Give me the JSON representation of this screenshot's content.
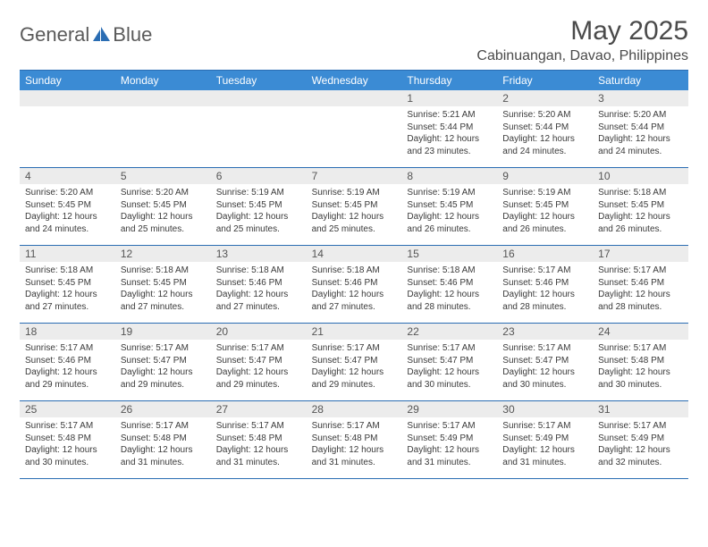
{
  "logo": {
    "word1": "General",
    "word2": "Blue"
  },
  "title": "May 2025",
  "location": "Cabinuangan, Davao, Philippines",
  "colors": {
    "header_bg": "#3b8bd4",
    "rule": "#2a6db3",
    "daynum_bg": "#ececec",
    "text": "#3a3a3a"
  },
  "font": {
    "family": "Arial",
    "title_size": 30,
    "location_size": 16,
    "dow_size": 12,
    "daynum_size": 12,
    "info_size": 10
  },
  "dow": [
    "Sunday",
    "Monday",
    "Tuesday",
    "Wednesday",
    "Thursday",
    "Friday",
    "Saturday"
  ],
  "days": [
    {
      "n": "",
      "sr": "",
      "ss": "",
      "dl1": "",
      "dl2": ""
    },
    {
      "n": "",
      "sr": "",
      "ss": "",
      "dl1": "",
      "dl2": ""
    },
    {
      "n": "",
      "sr": "",
      "ss": "",
      "dl1": "",
      "dl2": ""
    },
    {
      "n": "",
      "sr": "",
      "ss": "",
      "dl1": "",
      "dl2": ""
    },
    {
      "n": "1",
      "sr": "Sunrise: 5:21 AM",
      "ss": "Sunset: 5:44 PM",
      "dl1": "Daylight: 12 hours",
      "dl2": "and 23 minutes."
    },
    {
      "n": "2",
      "sr": "Sunrise: 5:20 AM",
      "ss": "Sunset: 5:44 PM",
      "dl1": "Daylight: 12 hours",
      "dl2": "and 24 minutes."
    },
    {
      "n": "3",
      "sr": "Sunrise: 5:20 AM",
      "ss": "Sunset: 5:44 PM",
      "dl1": "Daylight: 12 hours",
      "dl2": "and 24 minutes."
    },
    {
      "n": "4",
      "sr": "Sunrise: 5:20 AM",
      "ss": "Sunset: 5:45 PM",
      "dl1": "Daylight: 12 hours",
      "dl2": "and 24 minutes."
    },
    {
      "n": "5",
      "sr": "Sunrise: 5:20 AM",
      "ss": "Sunset: 5:45 PM",
      "dl1": "Daylight: 12 hours",
      "dl2": "and 25 minutes."
    },
    {
      "n": "6",
      "sr": "Sunrise: 5:19 AM",
      "ss": "Sunset: 5:45 PM",
      "dl1": "Daylight: 12 hours",
      "dl2": "and 25 minutes."
    },
    {
      "n": "7",
      "sr": "Sunrise: 5:19 AM",
      "ss": "Sunset: 5:45 PM",
      "dl1": "Daylight: 12 hours",
      "dl2": "and 25 minutes."
    },
    {
      "n": "8",
      "sr": "Sunrise: 5:19 AM",
      "ss": "Sunset: 5:45 PM",
      "dl1": "Daylight: 12 hours",
      "dl2": "and 26 minutes."
    },
    {
      "n": "9",
      "sr": "Sunrise: 5:19 AM",
      "ss": "Sunset: 5:45 PM",
      "dl1": "Daylight: 12 hours",
      "dl2": "and 26 minutes."
    },
    {
      "n": "10",
      "sr": "Sunrise: 5:18 AM",
      "ss": "Sunset: 5:45 PM",
      "dl1": "Daylight: 12 hours",
      "dl2": "and 26 minutes."
    },
    {
      "n": "11",
      "sr": "Sunrise: 5:18 AM",
      "ss": "Sunset: 5:45 PM",
      "dl1": "Daylight: 12 hours",
      "dl2": "and 27 minutes."
    },
    {
      "n": "12",
      "sr": "Sunrise: 5:18 AM",
      "ss": "Sunset: 5:45 PM",
      "dl1": "Daylight: 12 hours",
      "dl2": "and 27 minutes."
    },
    {
      "n": "13",
      "sr": "Sunrise: 5:18 AM",
      "ss": "Sunset: 5:46 PM",
      "dl1": "Daylight: 12 hours",
      "dl2": "and 27 minutes."
    },
    {
      "n": "14",
      "sr": "Sunrise: 5:18 AM",
      "ss": "Sunset: 5:46 PM",
      "dl1": "Daylight: 12 hours",
      "dl2": "and 27 minutes."
    },
    {
      "n": "15",
      "sr": "Sunrise: 5:18 AM",
      "ss": "Sunset: 5:46 PM",
      "dl1": "Daylight: 12 hours",
      "dl2": "and 28 minutes."
    },
    {
      "n": "16",
      "sr": "Sunrise: 5:17 AM",
      "ss": "Sunset: 5:46 PM",
      "dl1": "Daylight: 12 hours",
      "dl2": "and 28 minutes."
    },
    {
      "n": "17",
      "sr": "Sunrise: 5:17 AM",
      "ss": "Sunset: 5:46 PM",
      "dl1": "Daylight: 12 hours",
      "dl2": "and 28 minutes."
    },
    {
      "n": "18",
      "sr": "Sunrise: 5:17 AM",
      "ss": "Sunset: 5:46 PM",
      "dl1": "Daylight: 12 hours",
      "dl2": "and 29 minutes."
    },
    {
      "n": "19",
      "sr": "Sunrise: 5:17 AM",
      "ss": "Sunset: 5:47 PM",
      "dl1": "Daylight: 12 hours",
      "dl2": "and 29 minutes."
    },
    {
      "n": "20",
      "sr": "Sunrise: 5:17 AM",
      "ss": "Sunset: 5:47 PM",
      "dl1": "Daylight: 12 hours",
      "dl2": "and 29 minutes."
    },
    {
      "n": "21",
      "sr": "Sunrise: 5:17 AM",
      "ss": "Sunset: 5:47 PM",
      "dl1": "Daylight: 12 hours",
      "dl2": "and 29 minutes."
    },
    {
      "n": "22",
      "sr": "Sunrise: 5:17 AM",
      "ss": "Sunset: 5:47 PM",
      "dl1": "Daylight: 12 hours",
      "dl2": "and 30 minutes."
    },
    {
      "n": "23",
      "sr": "Sunrise: 5:17 AM",
      "ss": "Sunset: 5:47 PM",
      "dl1": "Daylight: 12 hours",
      "dl2": "and 30 minutes."
    },
    {
      "n": "24",
      "sr": "Sunrise: 5:17 AM",
      "ss": "Sunset: 5:48 PM",
      "dl1": "Daylight: 12 hours",
      "dl2": "and 30 minutes."
    },
    {
      "n": "25",
      "sr": "Sunrise: 5:17 AM",
      "ss": "Sunset: 5:48 PM",
      "dl1": "Daylight: 12 hours",
      "dl2": "and 30 minutes."
    },
    {
      "n": "26",
      "sr": "Sunrise: 5:17 AM",
      "ss": "Sunset: 5:48 PM",
      "dl1": "Daylight: 12 hours",
      "dl2": "and 31 minutes."
    },
    {
      "n": "27",
      "sr": "Sunrise: 5:17 AM",
      "ss": "Sunset: 5:48 PM",
      "dl1": "Daylight: 12 hours",
      "dl2": "and 31 minutes."
    },
    {
      "n": "28",
      "sr": "Sunrise: 5:17 AM",
      "ss": "Sunset: 5:48 PM",
      "dl1": "Daylight: 12 hours",
      "dl2": "and 31 minutes."
    },
    {
      "n": "29",
      "sr": "Sunrise: 5:17 AM",
      "ss": "Sunset: 5:49 PM",
      "dl1": "Daylight: 12 hours",
      "dl2": "and 31 minutes."
    },
    {
      "n": "30",
      "sr": "Sunrise: 5:17 AM",
      "ss": "Sunset: 5:49 PM",
      "dl1": "Daylight: 12 hours",
      "dl2": "and 31 minutes."
    },
    {
      "n": "31",
      "sr": "Sunrise: 5:17 AM",
      "ss": "Sunset: 5:49 PM",
      "dl1": "Daylight: 12 hours",
      "dl2": "and 32 minutes."
    }
  ]
}
